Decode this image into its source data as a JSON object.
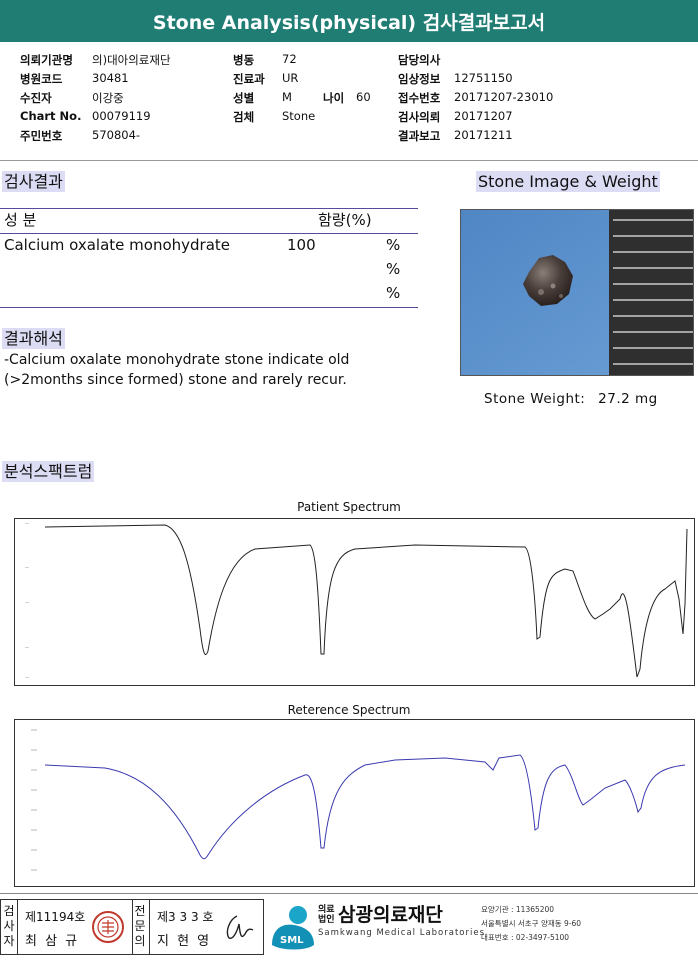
{
  "header": {
    "title": "Stone Analysis(physical) 검사결과보고서"
  },
  "patient": {
    "col1": [
      {
        "label": "의뢰기관명",
        "value": "의)대아의료재단"
      },
      {
        "label": "병원코드",
        "value": "30481"
      },
      {
        "label": "수진자",
        "value": "이강중"
      },
      {
        "label": "Chart No.",
        "value": "00079119"
      },
      {
        "label": "주민번호",
        "value": "570804-"
      }
    ],
    "col2": [
      {
        "label": "병동",
        "value": "72"
      },
      {
        "label": "진료과",
        "value": "UR"
      },
      {
        "label": "성별",
        "value": "M"
      },
      {
        "label": "검체",
        "value": "Stone"
      }
    ],
    "age": {
      "label": "나이",
      "value": "60"
    },
    "col3": [
      {
        "label": "담당의사",
        "value": ""
      },
      {
        "label": "임상정보",
        "value": "12751150"
      },
      {
        "label": "접수번호",
        "value": "20171207-23010"
      },
      {
        "label": "검사의뢰",
        "value": "20171207"
      },
      {
        "label": "결과보고",
        "value": "20171211"
      }
    ]
  },
  "results": {
    "heading": "검사결과",
    "col_component": "성  분",
    "col_content": "함량(%)",
    "rows": [
      {
        "component": "Calcium oxalate monohydrate",
        "value": "100",
        "unit": "%"
      },
      {
        "component": "",
        "value": "",
        "unit": "%"
      },
      {
        "component": "",
        "value": "",
        "unit": "%"
      }
    ]
  },
  "interpretation": {
    "heading": "결과해석",
    "line1": " -Calcium oxalate monohydrate stone indicate old",
    "line2": "(>2months since formed) stone and rarely recur."
  },
  "stone": {
    "heading": "Stone Image & Weight",
    "weight_label": "Stone Weight:",
    "weight_value": "27.2  mg",
    "bg_color": "#5b8fc9"
  },
  "spectrum": {
    "heading": "분석스팩트럼",
    "patient_title": "Patient Spectrum",
    "reference_title": "Reterence Spectrum",
    "patient_color": "#222222",
    "reference_color": "#3a3ab0"
  },
  "signatures": {
    "tester_label": "검사자",
    "tester_license": "제11194호",
    "tester_name": "최 삼 규",
    "doctor_label": "전문의",
    "doctor_license": "제3 3 3 호",
    "doctor_name": "지 현 영"
  },
  "lab": {
    "logo_text": "SML",
    "corp_prefix": "의료법인",
    "name": "삼광의료재단",
    "english": "Samkwang Medical Laboratories",
    "info1": "요양기관 : 11365200",
    "info2": "서울특별시 서초구 양재동 9-60",
    "info3": "대표번호 : 02-3497-5100"
  }
}
